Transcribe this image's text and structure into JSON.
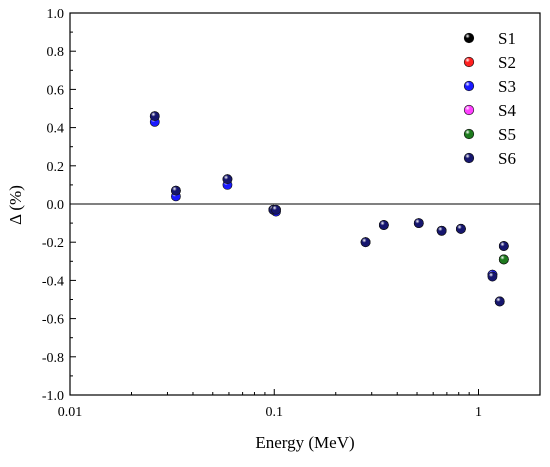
{
  "chart_data": {
    "type": "scatter",
    "xlabel": "Energy (MeV)",
    "ylabel": "Δ (%)",
    "xscale": "log",
    "xlim": [
      0.01,
      2
    ],
    "ylim": [
      -1.0,
      1.0
    ],
    "x_ticks": [
      {
        "value": 0.01,
        "label": "0.01"
      },
      {
        "value": 0.1,
        "label": "0.1"
      },
      {
        "value": 1,
        "label": "1"
      }
    ],
    "y_ticks": [
      {
        "value": 1.0,
        "label": "1.0"
      },
      {
        "value": 0.8,
        "label": "0.8"
      },
      {
        "value": 0.6,
        "label": "0.6"
      },
      {
        "value": 0.4,
        "label": "0.4"
      },
      {
        "value": 0.2,
        "label": "0.2"
      },
      {
        "value": 0.0,
        "label": "0.0"
      },
      {
        "value": -0.2,
        "label": "-0.2"
      },
      {
        "value": -0.4,
        "label": "-0.4"
      },
      {
        "value": -0.6,
        "label": "-0.6"
      },
      {
        "value": -0.8,
        "label": "-0.8"
      },
      {
        "value": -1.0,
        "label": "-1.0"
      }
    ],
    "reference_line": 0.0,
    "grid": false,
    "legend_position": "top-right",
    "series": [
      {
        "name": "S1",
        "color": "#000000",
        "points": [
          [
            0.026,
            0.46
          ],
          [
            0.033,
            0.07
          ],
          [
            0.059,
            0.13
          ],
          [
            0.099,
            -0.03
          ],
          [
            0.102,
            -0.03
          ],
          [
            0.28,
            -0.2
          ],
          [
            0.344,
            -0.11
          ],
          [
            0.51,
            -0.1
          ],
          [
            0.66,
            -0.14
          ],
          [
            0.82,
            -0.13
          ],
          [
            1.17,
            -0.37
          ],
          [
            1.27,
            -0.51
          ],
          [
            1.33,
            -0.22
          ]
        ]
      },
      {
        "name": "S2",
        "color": "#ff2020",
        "points": [
          [
            1.33,
            -0.29
          ]
        ]
      },
      {
        "name": "S3",
        "color": "#1a1aff",
        "points": [
          [
            0.026,
            0.43
          ],
          [
            0.033,
            0.04
          ],
          [
            0.059,
            0.1
          ],
          [
            0.099,
            -0.03
          ],
          [
            0.102,
            -0.04
          ],
          [
            0.28,
            -0.2
          ],
          [
            0.344,
            -0.11
          ],
          [
            0.51,
            -0.1
          ],
          [
            0.66,
            -0.14
          ],
          [
            0.82,
            -0.13
          ],
          [
            1.17,
            -0.37
          ],
          [
            1.27,
            -0.51
          ],
          [
            1.33,
            -0.22
          ]
        ]
      },
      {
        "name": "S4",
        "color": "#ff40ff",
        "points": [
          [
            1.33,
            -0.29
          ]
        ]
      },
      {
        "name": "S5",
        "color": "#1e7a1e",
        "points": [
          [
            1.33,
            -0.29
          ]
        ]
      },
      {
        "name": "S6",
        "color": "#16166e",
        "points": [
          [
            0.026,
            0.46
          ],
          [
            0.033,
            0.07
          ],
          [
            0.059,
            0.13
          ],
          [
            0.099,
            -0.03
          ],
          [
            0.102,
            -0.03
          ],
          [
            0.28,
            -0.2
          ],
          [
            0.344,
            -0.11
          ],
          [
            0.51,
            -0.1
          ],
          [
            0.66,
            -0.14
          ],
          [
            0.82,
            -0.13
          ],
          [
            1.17,
            -0.38
          ],
          [
            1.27,
            -0.51
          ],
          [
            1.33,
            -0.22
          ]
        ]
      }
    ]
  }
}
